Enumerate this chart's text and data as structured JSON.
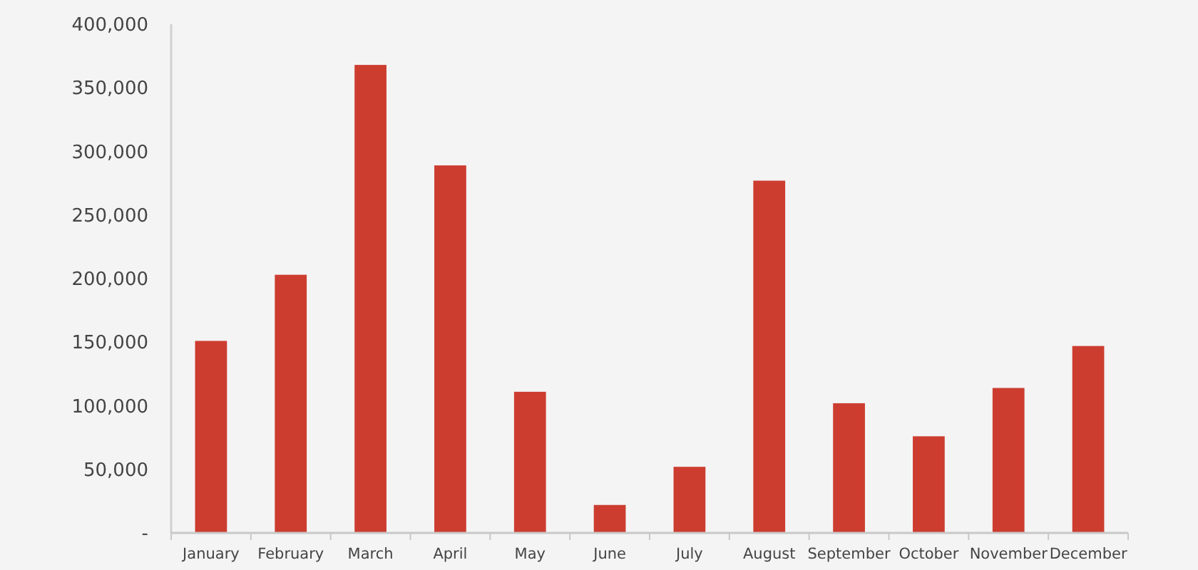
{
  "chart_data": {
    "type": "bar",
    "categories": [
      "January",
      "February",
      "March",
      "April",
      "May",
      "June",
      "July",
      "August",
      "September",
      "October",
      "November",
      "December"
    ],
    "values": [
      151000,
      203000,
      368000,
      289000,
      111000,
      22000,
      52000,
      277000,
      102000,
      76000,
      114000,
      147000
    ],
    "color": "#cc3d30",
    "ylim": [
      0,
      400000
    ],
    "yticks": [
      {
        "value": 0,
        "label": "-"
      },
      {
        "value": 50000,
        "label": "50,000"
      },
      {
        "value": 100000,
        "label": "100,000"
      },
      {
        "value": 150000,
        "label": "150,000"
      },
      {
        "value": 200000,
        "label": "200,000"
      },
      {
        "value": 250000,
        "label": "250,000"
      },
      {
        "value": 300000,
        "label": "300,000"
      },
      {
        "value": 350000,
        "label": "350,000"
      },
      {
        "value": 400000,
        "label": "400,000"
      }
    ],
    "grid": false
  }
}
